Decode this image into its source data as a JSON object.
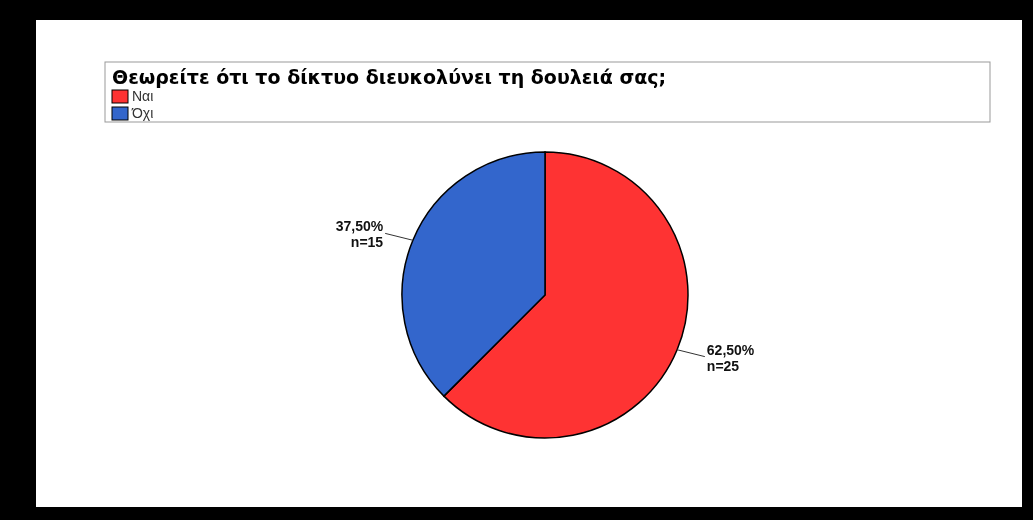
{
  "chart_data": {
    "type": "pie",
    "legend_title": "Θεωρείτε ότι το δίκτυο διευκολύνει τη δουλειά σας;",
    "legend": "top left",
    "categories": [
      "Ναι",
      "Όχι"
    ],
    "values": [
      62.5,
      37.5
    ],
    "colors": [
      "#fe3333",
      "#3366cc"
    ],
    "value_labels": [
      "62,50%\nn=25",
      "37,50%\nn=15"
    ]
  }
}
